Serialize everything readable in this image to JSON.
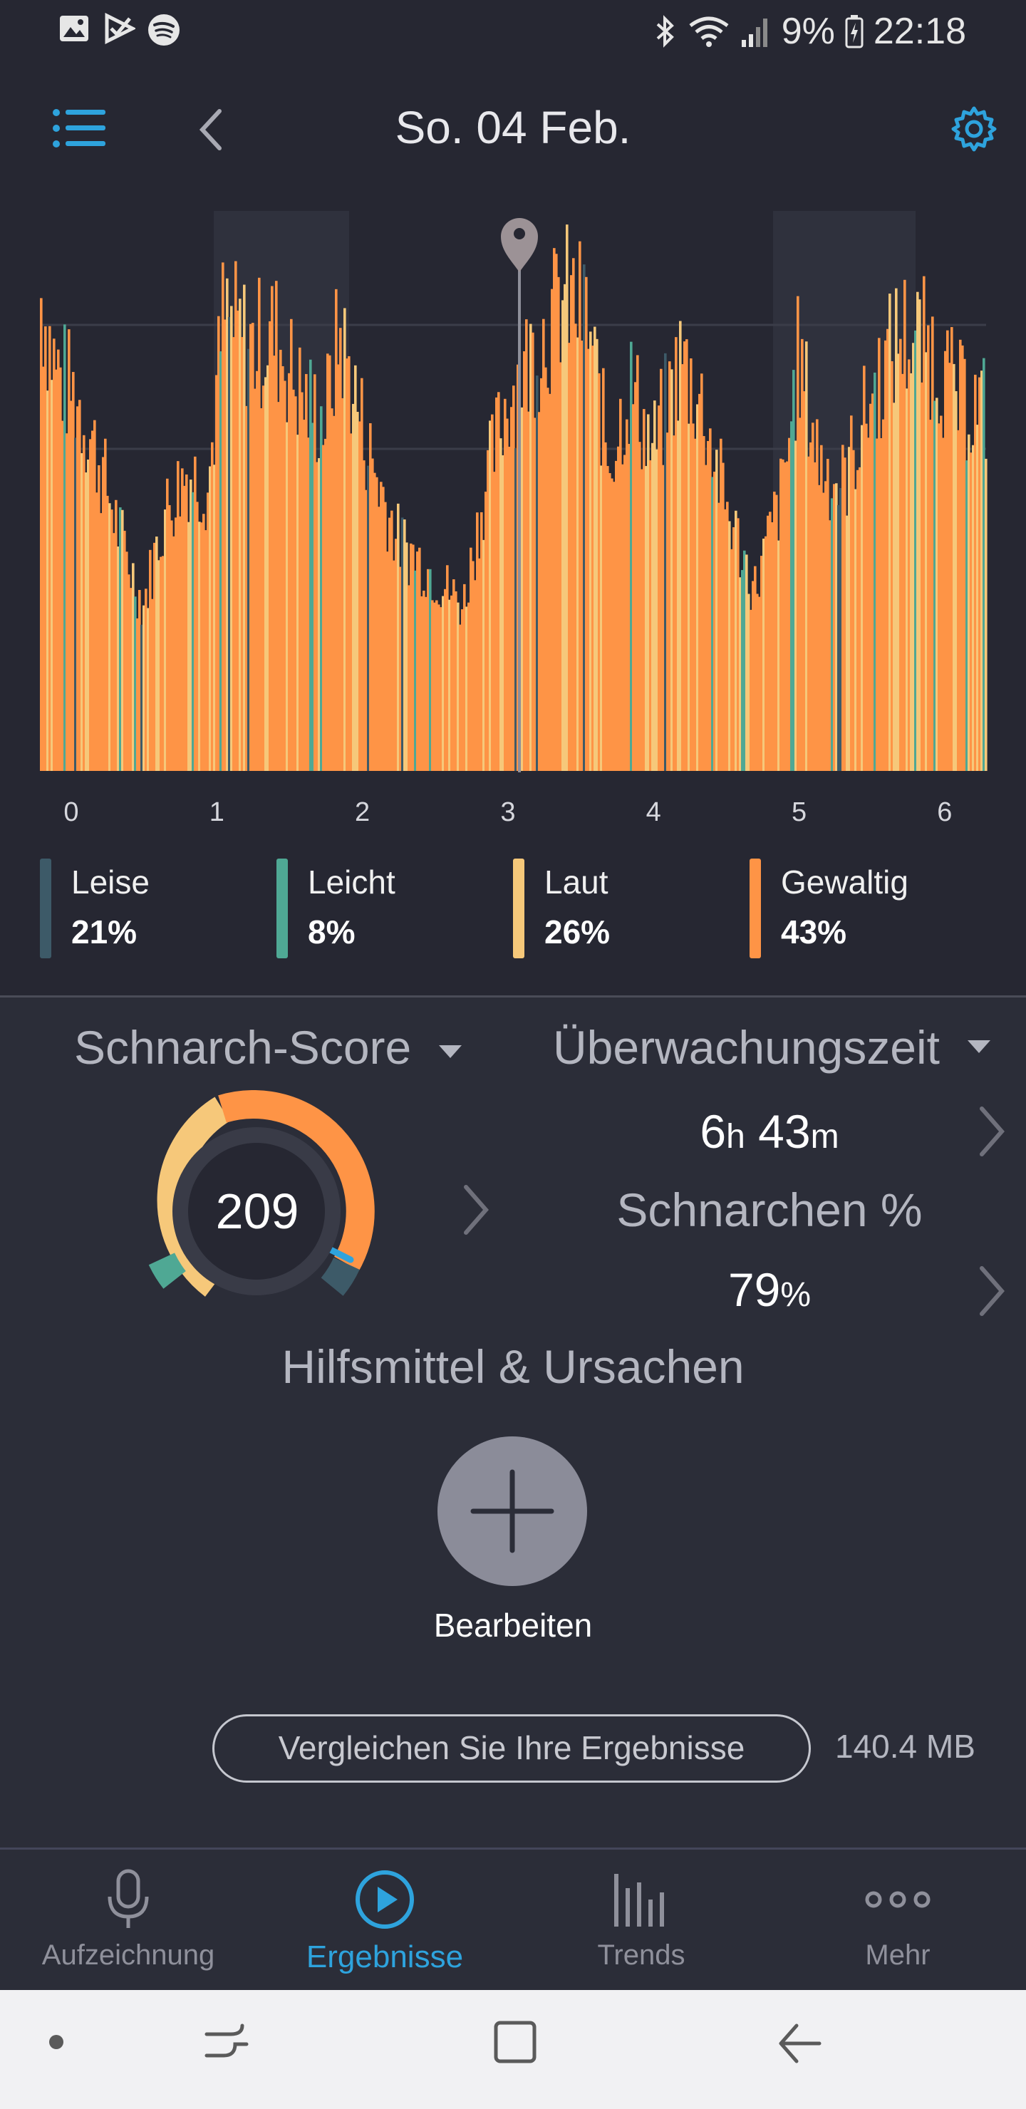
{
  "status_bar": {
    "battery_percent": "9%",
    "time": "22:18",
    "left_icons": [
      "image-icon",
      "play-store-icon",
      "spotify-icon"
    ],
    "right_icons": [
      "bluetooth-icon",
      "wifi-icon",
      "signal-icon",
      "battery-charging-icon"
    ]
  },
  "header": {
    "date": "So. 04 Feb.",
    "menu_icon": "list-menu-icon",
    "back_icon": "chevron-left-icon",
    "settings_icon": "gear-icon"
  },
  "chart_data": {
    "type": "area",
    "x_ticks": [
      "0",
      "1",
      "2",
      "3",
      "4",
      "5",
      "6"
    ],
    "xlim": [
      0,
      6.5
    ],
    "series": [
      {
        "name": "Leise",
        "color": "#3d5a68"
      },
      {
        "name": "Leicht",
        "color": "#4fa894"
      },
      {
        "name": "Laut",
        "color": "#f6c87a"
      },
      {
        "name": "Gewaltig",
        "color": "#fe9446"
      }
    ]
  },
  "legend": [
    {
      "name": "Leise",
      "pct": "21%",
      "color": "#3d5a68"
    },
    {
      "name": "Leicht",
      "pct": "8%",
      "color": "#4fa894"
    },
    {
      "name": "Laut",
      "pct": "26%",
      "color": "#f6c87a"
    },
    {
      "name": "Gewaltig",
      "pct": "43%",
      "color": "#fe9446"
    }
  ],
  "stats": {
    "score_label": "Schnarch-Score",
    "score_value": "209",
    "watch_label": "Überwachungszeit",
    "watch_hours": "6",
    "watch_h_unit": "h",
    "watch_minutes": "43",
    "watch_m_unit": "m",
    "snore_label": "Schnarchen %",
    "snore_value": "79",
    "snore_unit": "%"
  },
  "aids": {
    "title": "Hilfsmittel & Ursachen",
    "edit_label": "Bearbeiten"
  },
  "compare_label": "Vergleichen Sie Ihre Ergebnisse",
  "storage": "140.4 MB",
  "nav": [
    {
      "label": "Aufzeichnung",
      "icon": "microphone-icon"
    },
    {
      "label": "Ergebnisse",
      "icon": "play-circle-icon",
      "active": true
    },
    {
      "label": "Trends",
      "icon": "bar-chart-icon"
    },
    {
      "label": "Mehr",
      "icon": "more-dots-icon"
    }
  ],
  "colors": {
    "accent": "#2ea3dd",
    "background": "#2b2d38",
    "header_bg": "#262732"
  }
}
